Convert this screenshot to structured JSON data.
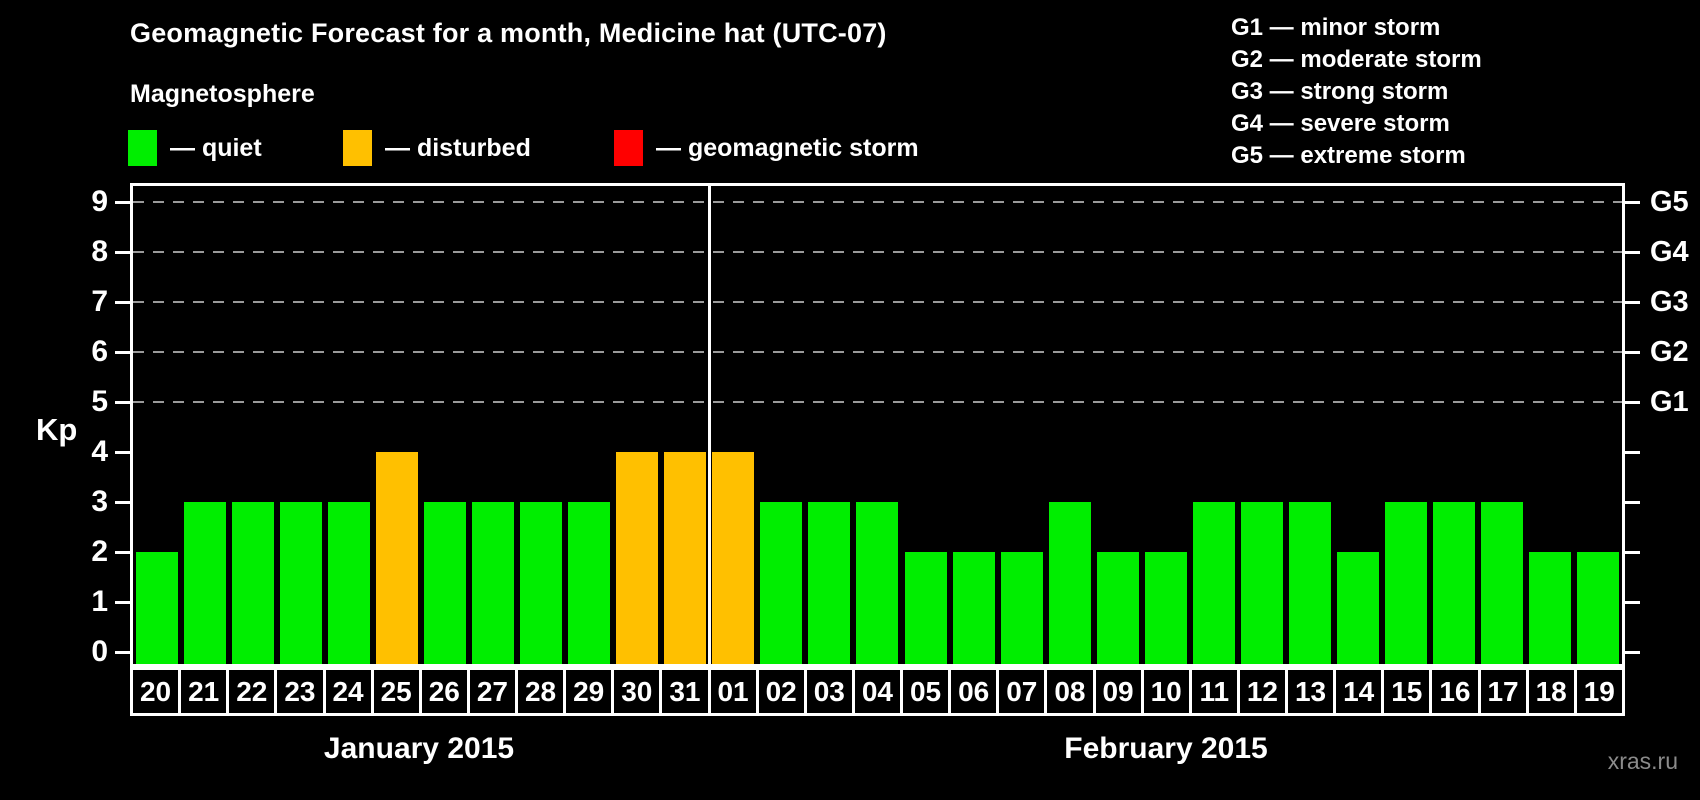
{
  "header": {
    "title": "Geomagnetic Forecast for a month, Medicine hat (UTC-07)"
  },
  "legend": {
    "title": "Magnetosphere",
    "items": [
      {
        "name": "quiet",
        "label": "— quiet",
        "color": "#00ee00"
      },
      {
        "name": "disturbed",
        "label": "— disturbed",
        "color": "#ffc000"
      },
      {
        "name": "geomagnetic-storm",
        "label": "— geomagnetic storm",
        "color": "#ff0000"
      }
    ]
  },
  "g_legend": {
    "lines": [
      "G1 — minor storm",
      "G2 — moderate storm",
      "G3 — strong storm",
      "G4 — severe storm",
      "G5 — extreme storm"
    ]
  },
  "axis": {
    "kp_label": "Kp",
    "kp_ticks": [
      0,
      1,
      2,
      3,
      4,
      5,
      6,
      7,
      8,
      9
    ],
    "grid_levels": [
      5,
      6,
      7,
      8,
      9
    ],
    "g_ticks": [
      {
        "kp": 5,
        "label": "G1"
      },
      {
        "kp": 6,
        "label": "G2"
      },
      {
        "kp": 7,
        "label": "G3"
      },
      {
        "kp": 8,
        "label": "G4"
      },
      {
        "kp": 9,
        "label": "G5"
      }
    ]
  },
  "months": [
    {
      "label": "January 2015"
    },
    {
      "label": "February 2015"
    }
  ],
  "watermark": "xras.ru",
  "chart_data": {
    "type": "bar",
    "title": "Geomagnetic Forecast for a month, Medicine hat (UTC-07)",
    "ylabel": "Kp",
    "ylim": [
      0,
      9
    ],
    "grid": "dashed horizontal at Kp 5-9 (G1-G5)",
    "legend_position": "top",
    "month_separator_after_index": 11,
    "bars": [
      {
        "day": "20",
        "month": "Jan",
        "kp": 2,
        "state": "quiet"
      },
      {
        "day": "21",
        "month": "Jan",
        "kp": 3,
        "state": "quiet"
      },
      {
        "day": "22",
        "month": "Jan",
        "kp": 3,
        "state": "quiet"
      },
      {
        "day": "23",
        "month": "Jan",
        "kp": 3,
        "state": "quiet"
      },
      {
        "day": "24",
        "month": "Jan",
        "kp": 3,
        "state": "quiet"
      },
      {
        "day": "25",
        "month": "Jan",
        "kp": 4,
        "state": "disturbed"
      },
      {
        "day": "26",
        "month": "Jan",
        "kp": 3,
        "state": "quiet"
      },
      {
        "day": "27",
        "month": "Jan",
        "kp": 3,
        "state": "quiet"
      },
      {
        "day": "28",
        "month": "Jan",
        "kp": 3,
        "state": "quiet"
      },
      {
        "day": "29",
        "month": "Jan",
        "kp": 3,
        "state": "quiet"
      },
      {
        "day": "30",
        "month": "Jan",
        "kp": 4,
        "state": "disturbed"
      },
      {
        "day": "31",
        "month": "Jan",
        "kp": 4,
        "state": "disturbed"
      },
      {
        "day": "01",
        "month": "Feb",
        "kp": 4,
        "state": "disturbed"
      },
      {
        "day": "02",
        "month": "Feb",
        "kp": 3,
        "state": "quiet"
      },
      {
        "day": "03",
        "month": "Feb",
        "kp": 3,
        "state": "quiet"
      },
      {
        "day": "04",
        "month": "Feb",
        "kp": 3,
        "state": "quiet"
      },
      {
        "day": "05",
        "month": "Feb",
        "kp": 2,
        "state": "quiet"
      },
      {
        "day": "06",
        "month": "Feb",
        "kp": 2,
        "state": "quiet"
      },
      {
        "day": "07",
        "month": "Feb",
        "kp": 2,
        "state": "quiet"
      },
      {
        "day": "08",
        "month": "Feb",
        "kp": 3,
        "state": "quiet"
      },
      {
        "day": "09",
        "month": "Feb",
        "kp": 2,
        "state": "quiet"
      },
      {
        "day": "10",
        "month": "Feb",
        "kp": 2,
        "state": "quiet"
      },
      {
        "day": "11",
        "month": "Feb",
        "kp": 3,
        "state": "quiet"
      },
      {
        "day": "12",
        "month": "Feb",
        "kp": 3,
        "state": "quiet"
      },
      {
        "day": "13",
        "month": "Feb",
        "kp": 3,
        "state": "quiet"
      },
      {
        "day": "14",
        "month": "Feb",
        "kp": 2,
        "state": "quiet"
      },
      {
        "day": "15",
        "month": "Feb",
        "kp": 3,
        "state": "quiet"
      },
      {
        "day": "16",
        "month": "Feb",
        "kp": 3,
        "state": "quiet"
      },
      {
        "day": "17",
        "month": "Feb",
        "kp": 3,
        "state": "quiet"
      },
      {
        "day": "18",
        "month": "Feb",
        "kp": 2,
        "state": "quiet"
      },
      {
        "day": "19",
        "month": "Feb",
        "kp": 2,
        "state": "quiet"
      }
    ]
  }
}
